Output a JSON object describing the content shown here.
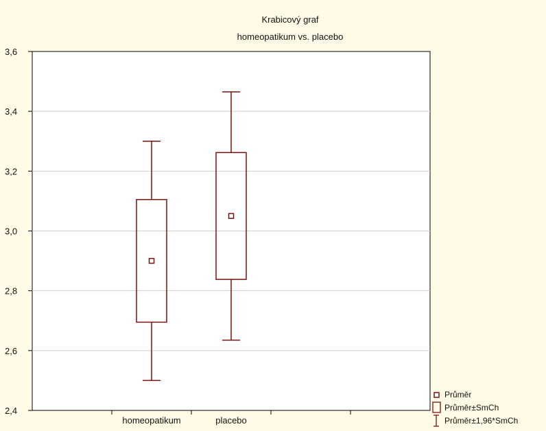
{
  "chart_data": {
    "type": "boxplot",
    "title": "Krabicový graf",
    "subtitle": "homeopatikum vs. placebo",
    "xlabel": "",
    "ylabel": "",
    "ylim": [
      2.4,
      3.6
    ],
    "yticks": [
      2.4,
      2.6,
      2.8,
      3.0,
      3.2,
      3.4,
      3.6
    ],
    "ytick_labels": [
      "2,4",
      "2,6",
      "2,8",
      "3,0",
      "3,2",
      "3,4",
      "3,6"
    ],
    "grid": true,
    "categories": [
      "homeopatikum",
      "placebo"
    ],
    "boxes": [
      {
        "category": "homeopatikum",
        "mean": 2.9,
        "box_low": 2.695,
        "box_high": 3.105,
        "whisker_low": 2.5,
        "whisker_high": 3.3
      },
      {
        "category": "placebo",
        "mean": 3.05,
        "box_low": 2.838,
        "box_high": 3.262,
        "whisker_low": 2.635,
        "whisker_high": 3.465
      }
    ],
    "legend": {
      "position": "bottom-right",
      "entries": [
        {
          "symbol": "mean-square",
          "label": "Průměr"
        },
        {
          "symbol": "box",
          "label": "Průměr±SmCh"
        },
        {
          "symbol": "whisker",
          "label": "Průměr±1,96*SmCh"
        }
      ]
    },
    "colors": {
      "series": "#7a1010",
      "grid": "#cfcfcf",
      "plot_bg": "#ffffff",
      "page_bg": "#fffbe6"
    }
  }
}
